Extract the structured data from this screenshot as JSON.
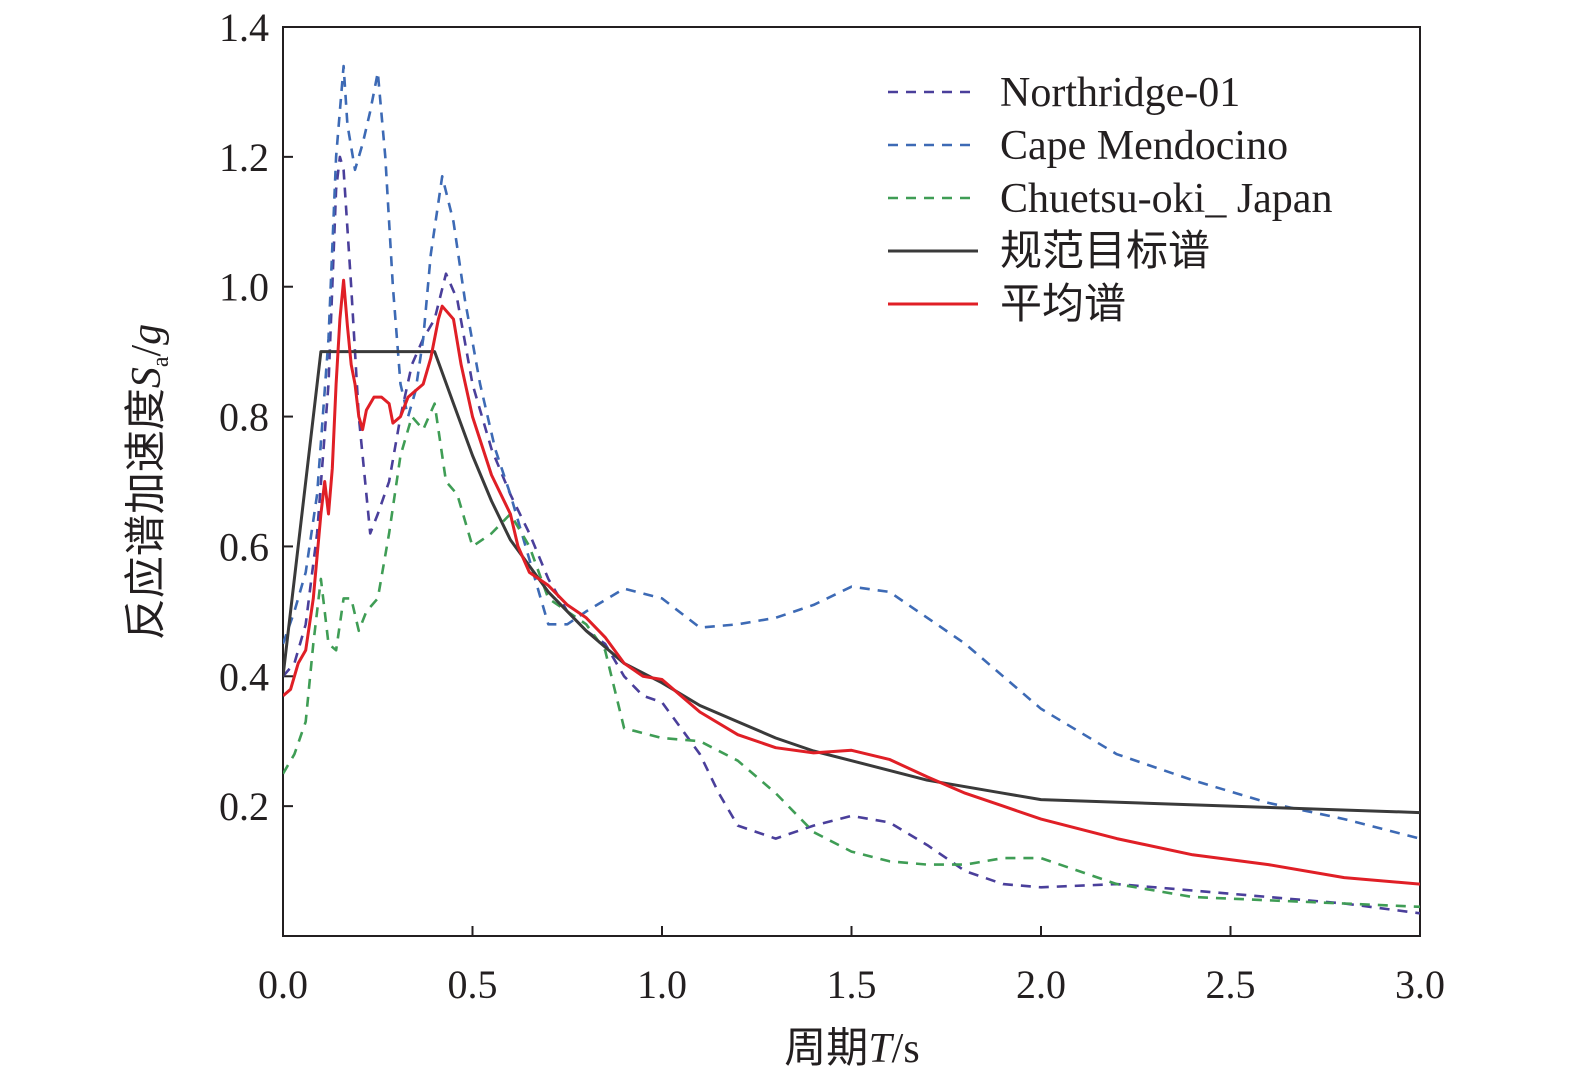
{
  "chart_data": {
    "type": "line",
    "xlabel_prefix": "周期",
    "xlabel_var": "T",
    "xlabel_unit": "/s",
    "ylabel_prefix": "反应谱加速度",
    "ylabel_var": "S",
    "ylabel_sub": "a",
    "ylabel_unit": "/",
    "ylabel_g": "g",
    "xlim": [
      0,
      3.0
    ],
    "ylim": [
      0,
      1.4
    ],
    "xticks": [
      "0.0",
      "0.5",
      "1.0",
      "1.5",
      "2.0",
      "2.5",
      "3.0"
    ],
    "xtick_values": [
      0,
      0.5,
      1.0,
      1.5,
      2.0,
      2.5,
      3.0
    ],
    "yticks": [
      "0.2",
      "0.4",
      "0.6",
      "0.8",
      "1.0",
      "1.2",
      "1.4"
    ],
    "ytick_values": [
      0.2,
      0.4,
      0.6,
      0.8,
      1.0,
      1.2,
      1.4
    ],
    "legend_position": "top-right",
    "series": [
      {
        "name": "Northridge-01",
        "color": "#4a3f9b",
        "dash": true,
        "points": [
          [
            0.0,
            0.4
          ],
          [
            0.03,
            0.42
          ],
          [
            0.06,
            0.48
          ],
          [
            0.09,
            0.62
          ],
          [
            0.12,
            0.85
          ],
          [
            0.14,
            1.15
          ],
          [
            0.15,
            1.2
          ],
          [
            0.16,
            1.18
          ],
          [
            0.18,
            1.0
          ],
          [
            0.2,
            0.8
          ],
          [
            0.23,
            0.62
          ],
          [
            0.25,
            0.65
          ],
          [
            0.28,
            0.7
          ],
          [
            0.31,
            0.8
          ],
          [
            0.34,
            0.88
          ],
          [
            0.37,
            0.92
          ],
          [
            0.4,
            0.95
          ],
          [
            0.43,
            1.02
          ],
          [
            0.46,
            0.98
          ],
          [
            0.5,
            0.85
          ],
          [
            0.55,
            0.75
          ],
          [
            0.6,
            0.68
          ],
          [
            0.65,
            0.62
          ],
          [
            0.7,
            0.55
          ],
          [
            0.75,
            0.5
          ],
          [
            0.8,
            0.47
          ],
          [
            0.85,
            0.45
          ],
          [
            0.9,
            0.4
          ],
          [
            0.95,
            0.37
          ],
          [
            1.0,
            0.36
          ],
          [
            1.05,
            0.32
          ],
          [
            1.1,
            0.28
          ],
          [
            1.15,
            0.22
          ],
          [
            1.2,
            0.17
          ],
          [
            1.3,
            0.15
          ],
          [
            1.4,
            0.17
          ],
          [
            1.5,
            0.185
          ],
          [
            1.6,
            0.175
          ],
          [
            1.7,
            0.14
          ],
          [
            1.8,
            0.1
          ],
          [
            1.9,
            0.08
          ],
          [
            2.0,
            0.075
          ],
          [
            2.2,
            0.08
          ],
          [
            2.4,
            0.07
          ],
          [
            2.6,
            0.06
          ],
          [
            2.8,
            0.05
          ],
          [
            3.0,
            0.035
          ]
        ]
      },
      {
        "name": "Cape Mendocino",
        "color": "#3d6ab5",
        "dash": true,
        "points": [
          [
            0.0,
            0.45
          ],
          [
            0.03,
            0.5
          ],
          [
            0.06,
            0.56
          ],
          [
            0.09,
            0.68
          ],
          [
            0.12,
            0.92
          ],
          [
            0.14,
            1.2
          ],
          [
            0.16,
            1.34
          ],
          [
            0.17,
            1.25
          ],
          [
            0.19,
            1.18
          ],
          [
            0.21,
            1.22
          ],
          [
            0.23,
            1.27
          ],
          [
            0.25,
            1.33
          ],
          [
            0.27,
            1.2
          ],
          [
            0.29,
            1.0
          ],
          [
            0.31,
            0.85
          ],
          [
            0.33,
            0.8
          ],
          [
            0.35,
            0.84
          ],
          [
            0.37,
            0.92
          ],
          [
            0.39,
            1.05
          ],
          [
            0.42,
            1.17
          ],
          [
            0.45,
            1.1
          ],
          [
            0.48,
            0.98
          ],
          [
            0.52,
            0.85
          ],
          [
            0.56,
            0.75
          ],
          [
            0.6,
            0.68
          ],
          [
            0.64,
            0.6
          ],
          [
            0.68,
            0.52
          ],
          [
            0.7,
            0.48
          ],
          [
            0.75,
            0.48
          ],
          [
            0.8,
            0.5
          ],
          [
            0.9,
            0.535
          ],
          [
            1.0,
            0.52
          ],
          [
            1.1,
            0.475
          ],
          [
            1.2,
            0.48
          ],
          [
            1.3,
            0.49
          ],
          [
            1.4,
            0.51
          ],
          [
            1.5,
            0.538
          ],
          [
            1.6,
            0.53
          ],
          [
            1.7,
            0.49
          ],
          [
            1.8,
            0.45
          ],
          [
            1.9,
            0.4
          ],
          [
            2.0,
            0.35
          ],
          [
            2.2,
            0.28
          ],
          [
            2.4,
            0.24
          ],
          [
            2.6,
            0.205
          ],
          [
            2.8,
            0.18
          ],
          [
            3.0,
            0.15
          ]
        ]
      },
      {
        "name": "Chuetsu-oki_ Japan",
        "color": "#3f9d55",
        "dash": true,
        "points": [
          [
            0.0,
            0.25
          ],
          [
            0.03,
            0.28
          ],
          [
            0.06,
            0.33
          ],
          [
            0.08,
            0.45
          ],
          [
            0.1,
            0.55
          ],
          [
            0.12,
            0.45
          ],
          [
            0.14,
            0.44
          ],
          [
            0.16,
            0.52
          ],
          [
            0.18,
            0.52
          ],
          [
            0.2,
            0.47
          ],
          [
            0.22,
            0.5
          ],
          [
            0.25,
            0.52
          ],
          [
            0.28,
            0.62
          ],
          [
            0.31,
            0.74
          ],
          [
            0.34,
            0.8
          ],
          [
            0.37,
            0.78
          ],
          [
            0.4,
            0.82
          ],
          [
            0.43,
            0.7
          ],
          [
            0.46,
            0.68
          ],
          [
            0.5,
            0.6
          ],
          [
            0.55,
            0.62
          ],
          [
            0.6,
            0.65
          ],
          [
            0.65,
            0.6
          ],
          [
            0.7,
            0.52
          ],
          [
            0.75,
            0.5
          ],
          [
            0.8,
            0.48
          ],
          [
            0.85,
            0.44
          ],
          [
            0.9,
            0.32
          ],
          [
            1.0,
            0.305
          ],
          [
            1.1,
            0.3
          ],
          [
            1.2,
            0.27
          ],
          [
            1.3,
            0.22
          ],
          [
            1.4,
            0.16
          ],
          [
            1.5,
            0.13
          ],
          [
            1.6,
            0.115
          ],
          [
            1.7,
            0.11
          ],
          [
            1.8,
            0.11
          ],
          [
            1.9,
            0.12
          ],
          [
            2.0,
            0.12
          ],
          [
            2.2,
            0.08
          ],
          [
            2.4,
            0.06
          ],
          [
            2.6,
            0.055
          ],
          [
            2.8,
            0.05
          ],
          [
            3.0,
            0.045
          ]
        ]
      },
      {
        "name": "规范目标谱",
        "color": "#3a3a3a",
        "dash": false,
        "points": [
          [
            0.0,
            0.4
          ],
          [
            0.1,
            0.9
          ],
          [
            0.4,
            0.9
          ],
          [
            0.45,
            0.82
          ],
          [
            0.5,
            0.74
          ],
          [
            0.55,
            0.67
          ],
          [
            0.6,
            0.61
          ],
          [
            0.7,
            0.53
          ],
          [
            0.8,
            0.47
          ],
          [
            0.9,
            0.42
          ],
          [
            1.0,
            0.39
          ],
          [
            1.1,
            0.355
          ],
          [
            1.2,
            0.33
          ],
          [
            1.3,
            0.305
          ],
          [
            1.4,
            0.285
          ],
          [
            1.5,
            0.27
          ],
          [
            1.6,
            0.255
          ],
          [
            1.7,
            0.24
          ],
          [
            1.8,
            0.23
          ],
          [
            1.9,
            0.22
          ],
          [
            2.0,
            0.21
          ],
          [
            3.0,
            0.19
          ]
        ]
      },
      {
        "name": "平均谱",
        "color": "#e01f26",
        "dash": false,
        "points": [
          [
            0.0,
            0.37
          ],
          [
            0.02,
            0.38
          ],
          [
            0.04,
            0.42
          ],
          [
            0.06,
            0.44
          ],
          [
            0.08,
            0.52
          ],
          [
            0.1,
            0.65
          ],
          [
            0.11,
            0.7
          ],
          [
            0.12,
            0.65
          ],
          [
            0.13,
            0.72
          ],
          [
            0.14,
            0.85
          ],
          [
            0.15,
            0.95
          ],
          [
            0.16,
            1.01
          ],
          [
            0.17,
            0.94
          ],
          [
            0.18,
            0.88
          ],
          [
            0.19,
            0.85
          ],
          [
            0.2,
            0.8
          ],
          [
            0.21,
            0.78
          ],
          [
            0.22,
            0.81
          ],
          [
            0.24,
            0.83
          ],
          [
            0.26,
            0.83
          ],
          [
            0.28,
            0.82
          ],
          [
            0.29,
            0.79
          ],
          [
            0.31,
            0.8
          ],
          [
            0.33,
            0.83
          ],
          [
            0.35,
            0.84
          ],
          [
            0.37,
            0.85
          ],
          [
            0.39,
            0.89
          ],
          [
            0.41,
            0.95
          ],
          [
            0.42,
            0.97
          ],
          [
            0.45,
            0.95
          ],
          [
            0.47,
            0.88
          ],
          [
            0.5,
            0.8
          ],
          [
            0.55,
            0.71
          ],
          [
            0.6,
            0.65
          ],
          [
            0.62,
            0.6
          ],
          [
            0.65,
            0.56
          ],
          [
            0.7,
            0.54
          ],
          [
            0.75,
            0.51
          ],
          [
            0.8,
            0.49
          ],
          [
            0.85,
            0.46
          ],
          [
            0.9,
            0.42
          ],
          [
            0.95,
            0.4
          ],
          [
            1.0,
            0.395
          ],
          [
            1.05,
            0.37
          ],
          [
            1.1,
            0.345
          ],
          [
            1.2,
            0.31
          ],
          [
            1.3,
            0.29
          ],
          [
            1.4,
            0.282
          ],
          [
            1.5,
            0.286
          ],
          [
            1.6,
            0.272
          ],
          [
            1.7,
            0.245
          ],
          [
            1.8,
            0.22
          ],
          [
            1.9,
            0.2
          ],
          [
            2.0,
            0.18
          ],
          [
            2.2,
            0.15
          ],
          [
            2.4,
            0.125
          ],
          [
            2.6,
            0.11
          ],
          [
            2.8,
            0.09
          ],
          [
            3.0,
            0.08
          ]
        ]
      }
    ]
  }
}
